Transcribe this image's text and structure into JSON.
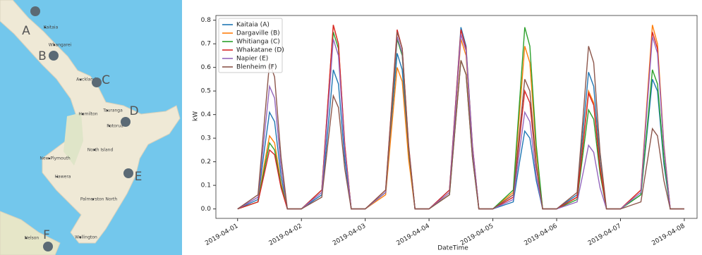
{
  "map": {
    "markers": [
      {
        "label": "A"
      },
      {
        "label": "B"
      },
      {
        "label": "C"
      },
      {
        "label": "D"
      },
      {
        "label": "E"
      },
      {
        "label": "F"
      }
    ],
    "places": [
      "Kaitaia",
      "Whangarei",
      "Auckland",
      "Hamilton",
      "Tauranga",
      "Rotorua",
      "North Island",
      "New Plymouth",
      "Hawera",
      "Palmerston North",
      "Wellington",
      "Nelson"
    ]
  },
  "chart_data": {
    "type": "line",
    "xlabel": "DateTime",
    "ylabel": "kW",
    "x": [
      0,
      0.32,
      0.42,
      0.5,
      0.58,
      0.68,
      0.78,
      1,
      1.32,
      1.42,
      1.5,
      1.58,
      1.68,
      1.78,
      2,
      2.32,
      2.42,
      2.5,
      2.58,
      2.68,
      2.78,
      3,
      3.32,
      3.42,
      3.5,
      3.58,
      3.68,
      3.78,
      4,
      4.32,
      4.42,
      4.5,
      4.58,
      4.68,
      4.78,
      5,
      5.32,
      5.42,
      5.5,
      5.58,
      5.68,
      5.78,
      6,
      6.32,
      6.42,
      6.5,
      6.58,
      6.68,
      6.78,
      7
    ],
    "xlim": [
      -0.34,
      7.2
    ],
    "xticks": [
      {
        "value": 0,
        "label": "2019-04-01"
      },
      {
        "value": 1,
        "label": "2019-04-02"
      },
      {
        "value": 2,
        "label": "2019-04-03"
      },
      {
        "value": 3,
        "label": "2019-04-04"
      },
      {
        "value": 4,
        "label": "2019-04-05"
      },
      {
        "value": 5,
        "label": "2019-04-06"
      },
      {
        "value": 6,
        "label": "2019-04-07"
      },
      {
        "value": 7,
        "label": "2019-04-08"
      }
    ],
    "ylim": [
      -0.04,
      0.82
    ],
    "yticks": [
      {
        "value": 0,
        "label": "0.0"
      },
      0.1,
      0.2,
      0.3,
      0.4,
      0.5,
      0.6,
      0.7,
      0.8
    ],
    "legend": "upper left",
    "series": [
      {
        "name": "Kaitaia (A)",
        "color": "#1f77b4",
        "values": [
          0,
          0.04,
          0.25,
          0.41,
          0.37,
          0.14,
          0,
          0,
          0.06,
          0.35,
          0.59,
          0.53,
          0.21,
          0,
          0,
          0.07,
          0.4,
          0.66,
          0.59,
          0.23,
          0,
          0,
          0.08,
          0.46,
          0.77,
          0.69,
          0.27,
          0,
          0,
          0.03,
          0.2,
          0.33,
          0.3,
          0.12,
          0,
          0,
          0.06,
          0.35,
          0.58,
          0.52,
          0.2,
          0,
          0,
          0.06,
          0.33,
          0.55,
          0.5,
          0.19,
          0,
          0
        ]
      },
      {
        "name": "Dargaville (B)",
        "color": "#ff7f0e",
        "values": [
          0,
          0.03,
          0.19,
          0.31,
          0.28,
          0.11,
          0,
          0,
          0.08,
          0.47,
          0.78,
          0.7,
          0.27,
          0,
          0,
          0.06,
          0.36,
          0.6,
          0.54,
          0.21,
          0,
          0,
          0.07,
          0.43,
          0.72,
          0.65,
          0.25,
          0,
          0,
          0.07,
          0.41,
          0.69,
          0.62,
          0.24,
          0,
          0,
          0.05,
          0.3,
          0.5,
          0.45,
          0.18,
          0,
          0,
          0.08,
          0.47,
          0.78,
          0.7,
          0.27,
          0,
          0
        ]
      },
      {
        "name": "Whitianga (C)",
        "color": "#2ca02c",
        "values": [
          0,
          0.03,
          0.17,
          0.28,
          0.25,
          0.1,
          0,
          0,
          0.08,
          0.45,
          0.75,
          0.68,
          0.26,
          0,
          0,
          0.07,
          0.43,
          0.72,
          0.65,
          0.25,
          0,
          0,
          0.06,
          0.38,
          0.63,
          0.57,
          0.22,
          0,
          0,
          0.08,
          0.46,
          0.77,
          0.69,
          0.27,
          0,
          0,
          0.04,
          0.25,
          0.42,
          0.38,
          0.15,
          0,
          0,
          0.06,
          0.35,
          0.59,
          0.53,
          0.21,
          0,
          0
        ]
      },
      {
        "name": "Whakatane (D)",
        "color": "#d62728",
        "values": [
          0,
          0.03,
          0.15,
          0.25,
          0.23,
          0.09,
          0,
          0,
          0.08,
          0.47,
          0.78,
          0.7,
          0.27,
          0,
          0,
          0.08,
          0.46,
          0.76,
          0.68,
          0.27,
          0,
          0,
          0.08,
          0.46,
          0.76,
          0.68,
          0.27,
          0,
          0,
          0.05,
          0.3,
          0.5,
          0.45,
          0.18,
          0,
          0,
          0.05,
          0.29,
          0.49,
          0.44,
          0.17,
          0,
          0,
          0.08,
          0.45,
          0.75,
          0.68,
          0.26,
          0,
          0
        ]
      },
      {
        "name": "Napier (E)",
        "color": "#9467bd",
        "values": [
          0,
          0.05,
          0.31,
          0.52,
          0.47,
          0.18,
          0,
          0,
          0.07,
          0.43,
          0.72,
          0.65,
          0.25,
          0,
          0,
          0.07,
          0.44,
          0.73,
          0.66,
          0.26,
          0,
          0,
          0.07,
          0.44,
          0.74,
          0.67,
          0.26,
          0,
          0,
          0.04,
          0.25,
          0.41,
          0.37,
          0.14,
          0,
          0,
          0.03,
          0.16,
          0.27,
          0.24,
          0.09,
          0,
          0,
          0.07,
          0.44,
          0.73,
          0.66,
          0.26,
          0,
          0
        ]
      },
      {
        "name": "Blenheim (F)",
        "color": "#8c564b",
        "values": [
          0,
          0.06,
          0.37,
          0.62,
          0.56,
          0.22,
          0,
          0,
          0.05,
          0.29,
          0.48,
          0.43,
          0.17,
          0,
          0,
          0.08,
          0.45,
          0.75,
          0.68,
          0.26,
          0,
          0,
          0.06,
          0.38,
          0.63,
          0.57,
          0.22,
          0,
          0,
          0.06,
          0.33,
          0.55,
          0.5,
          0.19,
          0,
          0,
          0.07,
          0.41,
          0.69,
          0.62,
          0.24,
          0,
          0,
          0.03,
          0.2,
          0.34,
          0.31,
          0.12,
          0,
          0
        ]
      }
    ]
  }
}
